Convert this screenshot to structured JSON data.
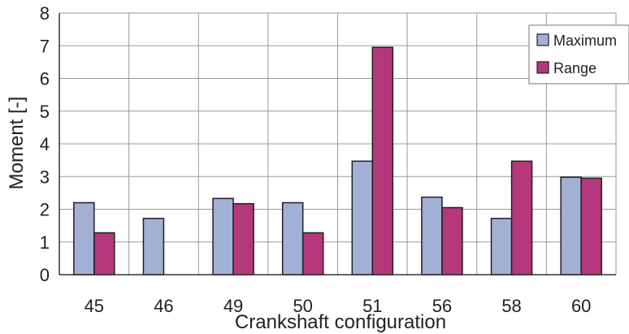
{
  "chart_data": {
    "type": "bar",
    "title": "",
    "xlabel": "Crankshaft configuration",
    "ylabel": "Moment [-]",
    "categories": [
      "45",
      "46",
      "49",
      "50",
      "51",
      "56",
      "58",
      "60"
    ],
    "ylim": [
      0,
      8
    ],
    "yticks": [
      0,
      1,
      2,
      3,
      4,
      5,
      6,
      7,
      8
    ],
    "grid": true,
    "legend_position": "top-right",
    "series": [
      {
        "name": "Maximum",
        "color": "#a3b0d6",
        "values": [
          2.2,
          1.72,
          2.33,
          2.2,
          3.47,
          2.37,
          1.72,
          2.98
        ]
      },
      {
        "name": "Range",
        "color": "#b5397a",
        "values": [
          1.28,
          null,
          2.17,
          1.28,
          6.95,
          2.05,
          3.47,
          2.95
        ]
      }
    ]
  }
}
